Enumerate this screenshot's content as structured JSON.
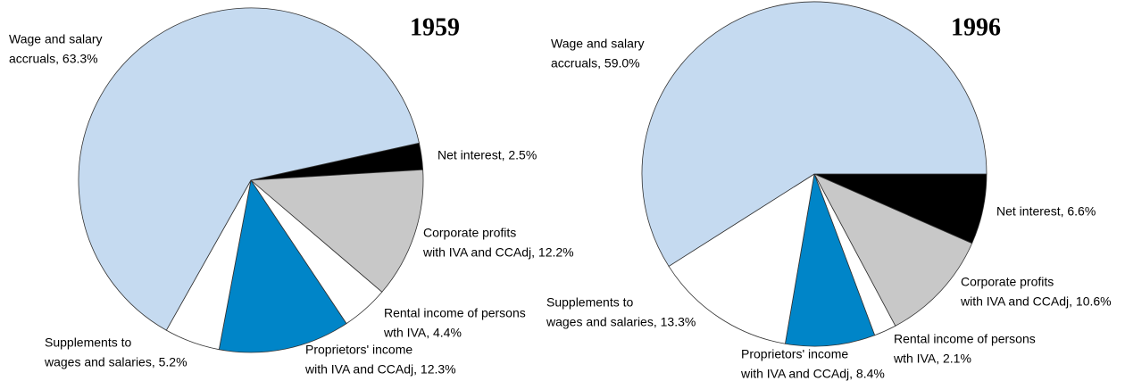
{
  "chart_data": [
    {
      "type": "pie",
      "title": "1959",
      "values": [
        2.5,
        12.2,
        4.4,
        12.3,
        5.2,
        63.3
      ],
      "value_labels": [
        [
          "Net interest, 2.5%"
        ],
        [
          "Corporate profits",
          "with IVA and CCAdj, 12.2%"
        ],
        [
          "Rental income of persons",
          "wth IVA, 4.4%"
        ],
        [
          "Proprietors' income",
          "with IVA and CCAdj, 12.3%"
        ],
        [
          "Supplements to",
          "wages and salaries, 5.2%"
        ],
        [
          "Wage and salary",
          "accruals, 63.3%"
        ]
      ],
      "colors": [
        "#000000",
        "#c8c8c8",
        "#ffffff",
        "#0085c8",
        "#ffffff",
        "#c5daf0"
      ]
    },
    {
      "type": "pie",
      "title": "1996",
      "values": [
        6.6,
        10.6,
        2.1,
        8.4,
        13.3,
        59.0
      ],
      "value_labels": [
        [
          "Net interest, 6.6%"
        ],
        [
          "Corporate profits",
          "with IVA and CCAdj, 10.6%"
        ],
        [
          "Rental income of persons",
          "wth IVA, 2.1%"
        ],
        [
          "Proprietors' income",
          "with IVA and CCAdj, 8.4%"
        ],
        [
          "Supplements to",
          "wages and salaries, 13.3%"
        ],
        [
          "Wage and salary",
          "accruals, 59.0%"
        ]
      ],
      "colors": [
        "#000000",
        "#c8c8c8",
        "#ffffff",
        "#0085c8",
        "#ffffff",
        "#c5daf0"
      ]
    }
  ]
}
